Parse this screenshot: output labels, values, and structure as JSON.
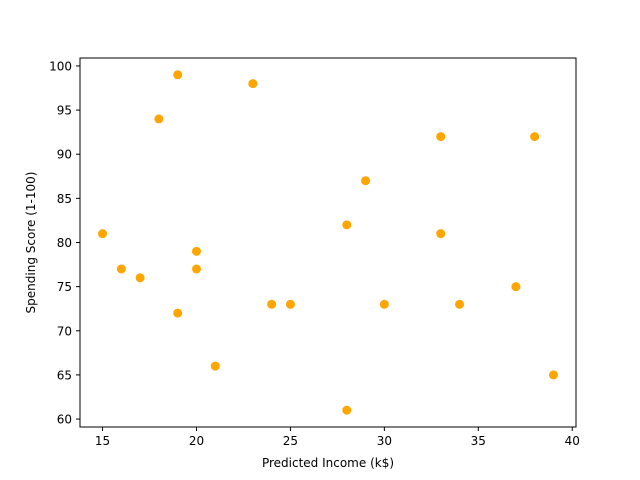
{
  "chart_data": {
    "type": "scatter",
    "title": "",
    "xlabel": "Predicted Income (k$)",
    "ylabel": "Spending Score (1-100)",
    "xlim": [
      13.8,
      40.2
    ],
    "ylim": [
      59.1,
      100.9
    ],
    "xticks": [
      15,
      20,
      25,
      30,
      35,
      40
    ],
    "yticks": [
      60,
      65,
      70,
      75,
      80,
      85,
      90,
      95,
      100
    ],
    "grid": false,
    "legend": "none",
    "marker_color": "#ffa500",
    "series": [
      {
        "x": [
          15,
          16,
          17,
          18,
          19,
          19,
          20,
          20,
          21,
          23,
          24,
          25,
          28,
          28,
          29,
          30,
          33,
          33,
          34,
          37,
          38,
          39
        ],
        "y": [
          81,
          77,
          76,
          94,
          99,
          72,
          79,
          77,
          66,
          98,
          73,
          73,
          82,
          61,
          87,
          73,
          92,
          81,
          73,
          75,
          92,
          65
        ]
      }
    ]
  }
}
